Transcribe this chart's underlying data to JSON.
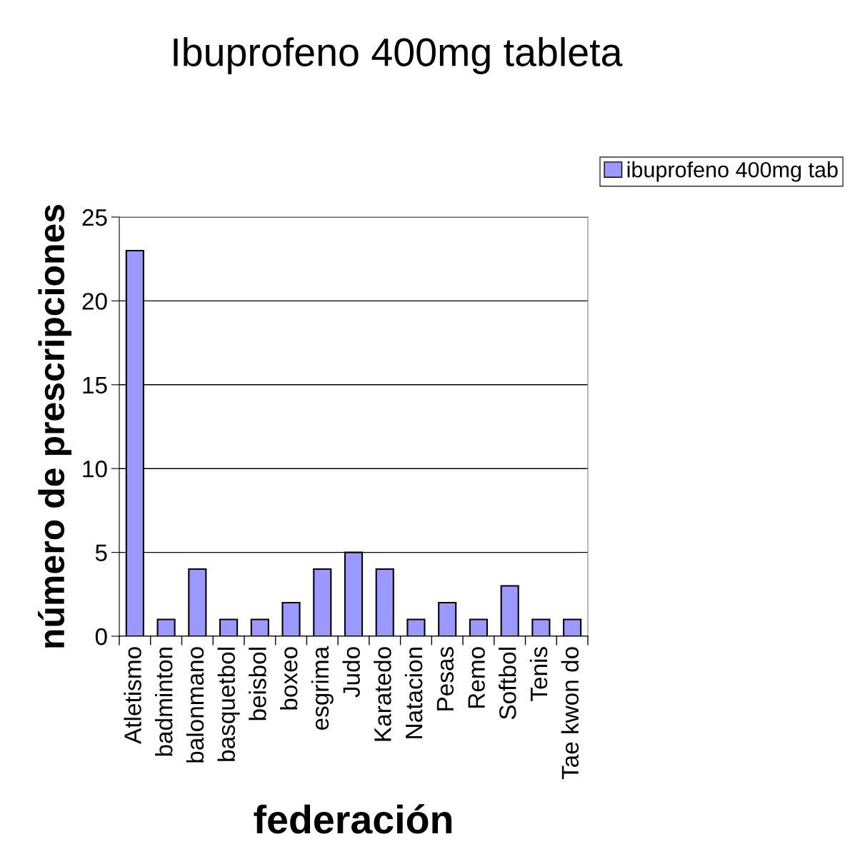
{
  "chart_data": {
    "type": "bar",
    "title": "Ibuprofeno 400mg tableta",
    "xlabel": "federación",
    "ylabel": "número de prescripciones",
    "categories": [
      "Atletismo",
      "badminton",
      "balonmano",
      "basquetbol",
      "beisbol",
      "boxeo",
      "esgrima",
      "Judo",
      "Karatedo",
      "Natacion",
      "Pesas",
      "Remo",
      "Softbol",
      "Tenis",
      "Tae kwon do"
    ],
    "series": [
      {
        "name": "ibuprofeno 400mg tab",
        "color": "#9999ff",
        "values": [
          23,
          1,
          4,
          1,
          1,
          2,
          4,
          5,
          4,
          1,
          2,
          1,
          3,
          1,
          1
        ]
      }
    ],
    "ylim": [
      0,
      25
    ],
    "yticks": [
      0,
      5,
      10,
      15,
      20,
      25
    ],
    "grid": "y",
    "legend": "top right"
  }
}
